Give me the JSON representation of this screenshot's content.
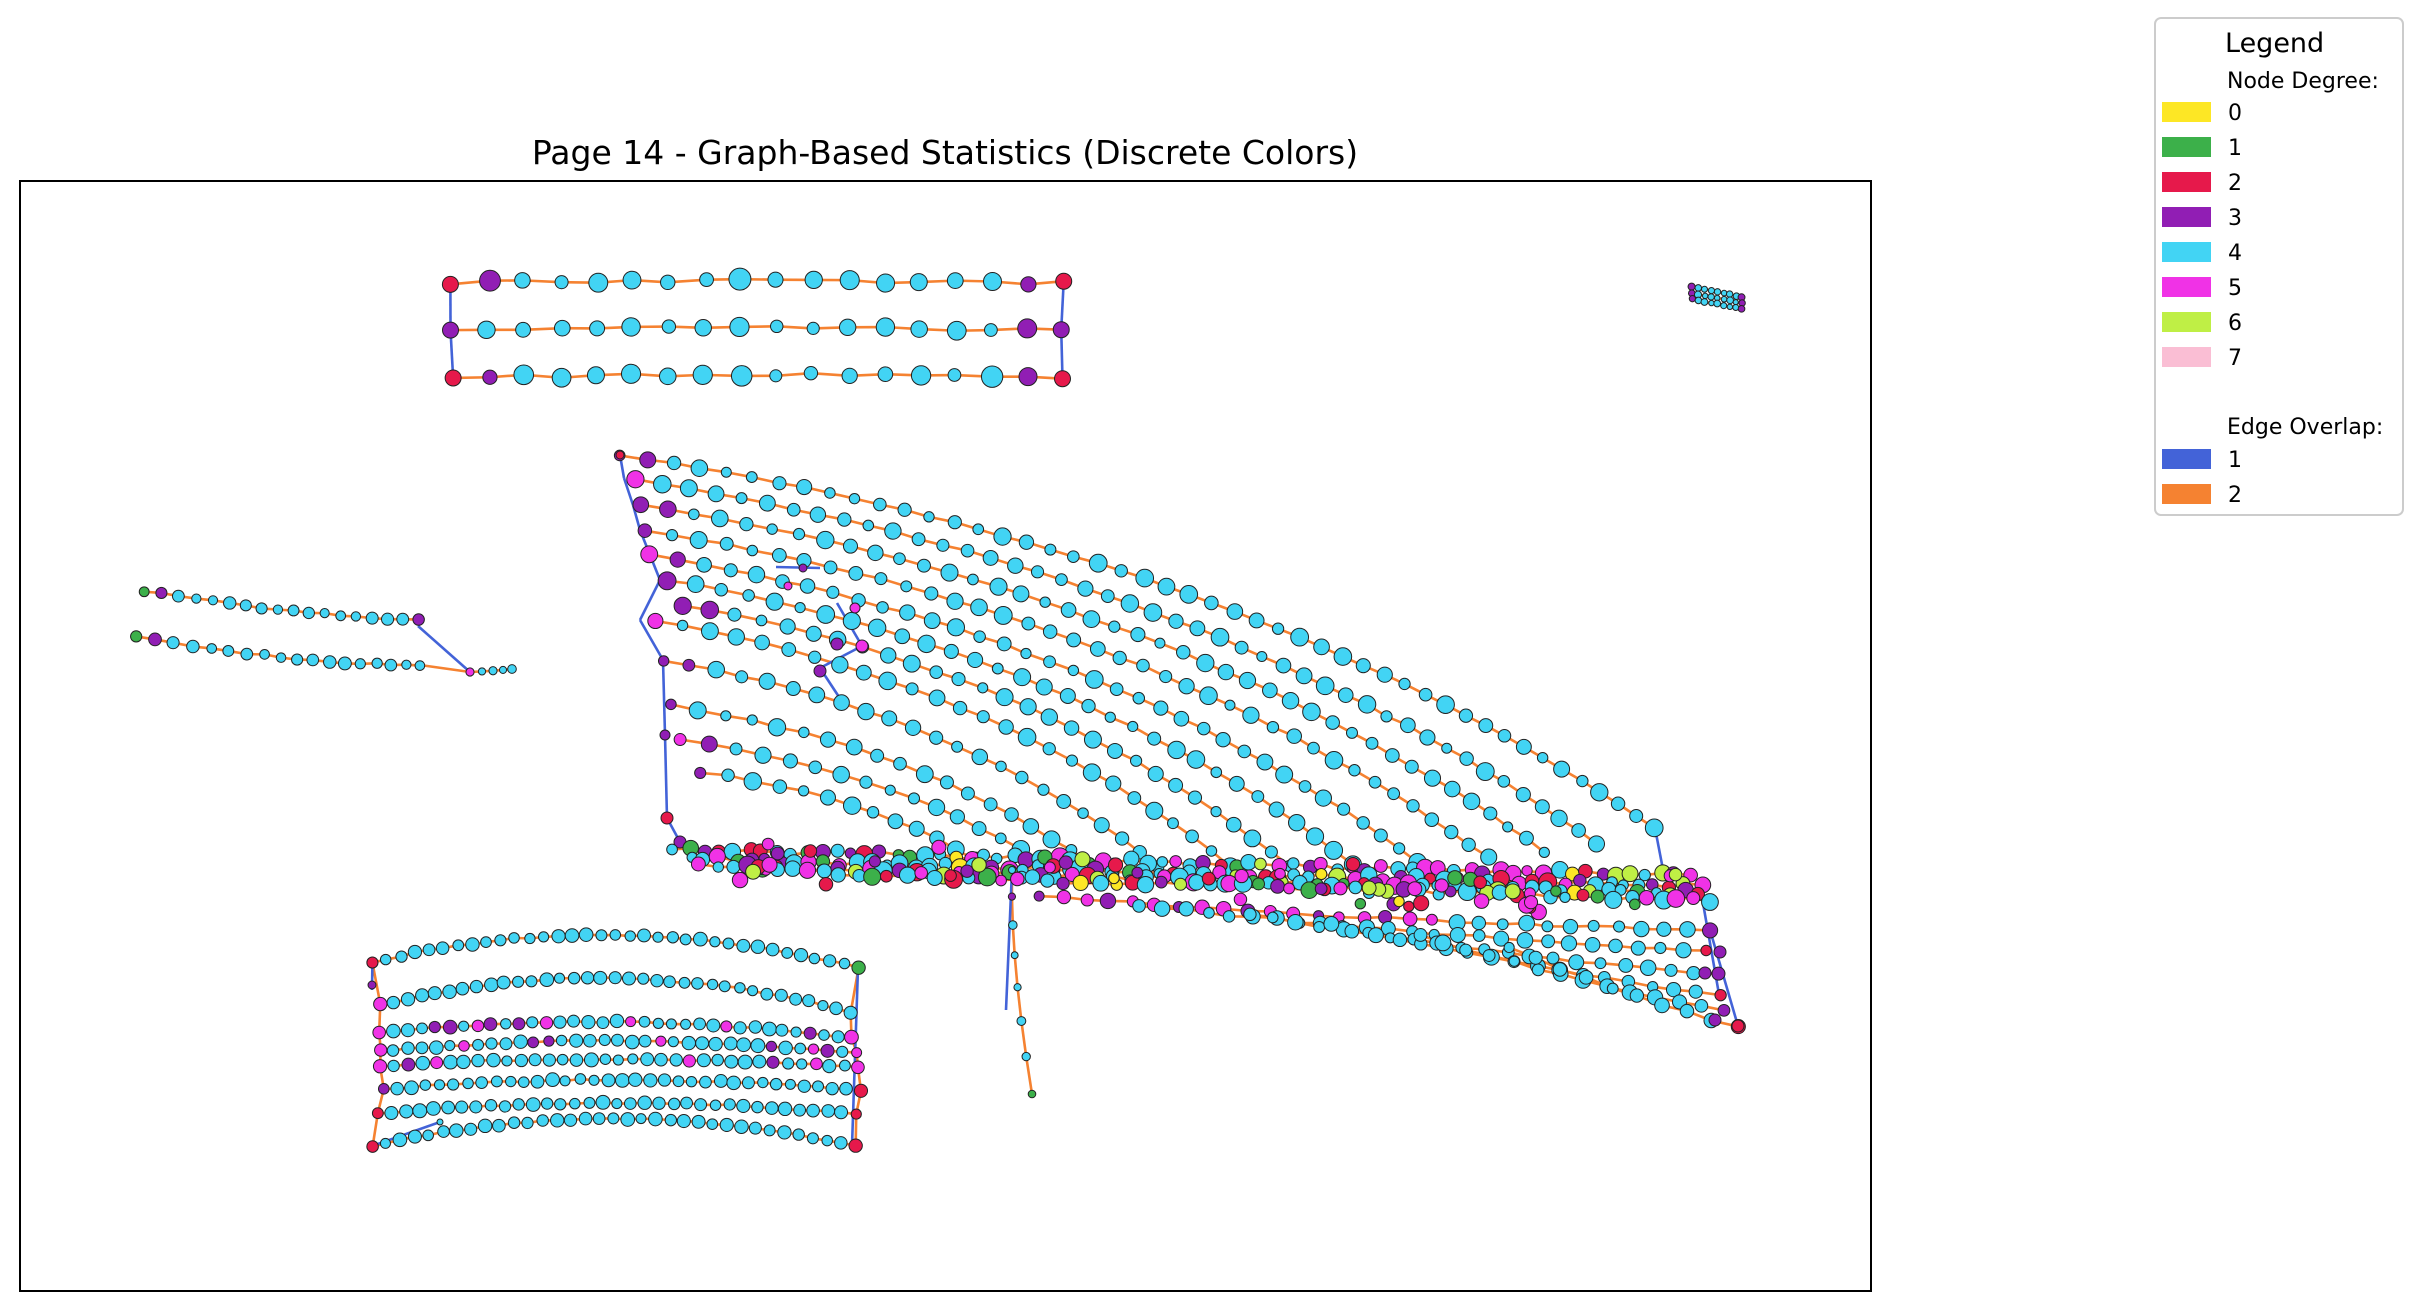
{
  "title": "Page 14 - Graph-Based Statistics (Discrete Colors)",
  "legend": {
    "title": "Legend",
    "node_degree_heading": "Node Degree:",
    "node_degree": [
      {
        "label": "0",
        "color": "#fde725"
      },
      {
        "label": "1",
        "color": "#3cb04a"
      },
      {
        "label": "2",
        "color": "#e6194b"
      },
      {
        "label": "3",
        "color": "#911eb4"
      },
      {
        "label": "4",
        "color": "#42d4f4"
      },
      {
        "label": "5",
        "color": "#f032e6"
      },
      {
        "label": "6",
        "color": "#bfef45"
      },
      {
        "label": "7",
        "color": "#fabed4"
      }
    ],
    "edge_overlap_heading": "Edge Overlap:",
    "edge_overlap": [
      {
        "label": "1",
        "color": "#4363d8"
      },
      {
        "label": "2",
        "color": "#f58231"
      }
    ]
  }
}
